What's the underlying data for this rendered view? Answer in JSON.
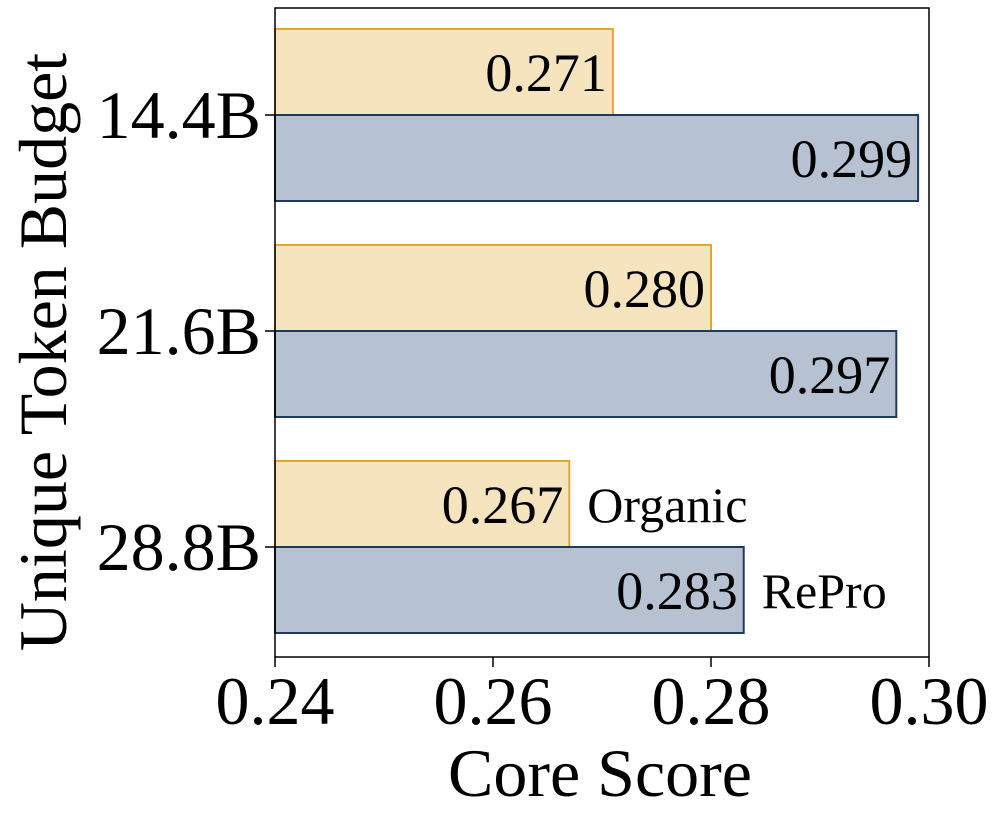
{
  "chart_data": {
    "type": "bar",
    "orientation": "horizontal",
    "xlabel": "Core Score",
    "ylabel": "Unique Token Budget",
    "xlim": [
      0.24,
      0.3
    ],
    "xticks": [
      "0.24",
      "0.26",
      "0.28",
      "0.30"
    ],
    "categories": [
      "14.4B",
      "21.6B",
      "28.8B"
    ],
    "series": [
      {
        "name": "Organic",
        "values": [
          0.271,
          0.28,
          0.267
        ],
        "labels": [
          "0.271",
          "0.280",
          "0.267"
        ],
        "fill": "#f5e4bd",
        "edge": "#e6a532"
      },
      {
        "name": "RePro",
        "values": [
          0.299,
          0.297,
          0.283
        ],
        "labels": [
          "0.299",
          "0.297",
          "0.283"
        ],
        "fill": "#b6c2d1",
        "edge": "#1f3a5f"
      }
    ],
    "series_label_position": "beside-last-category-bars"
  }
}
